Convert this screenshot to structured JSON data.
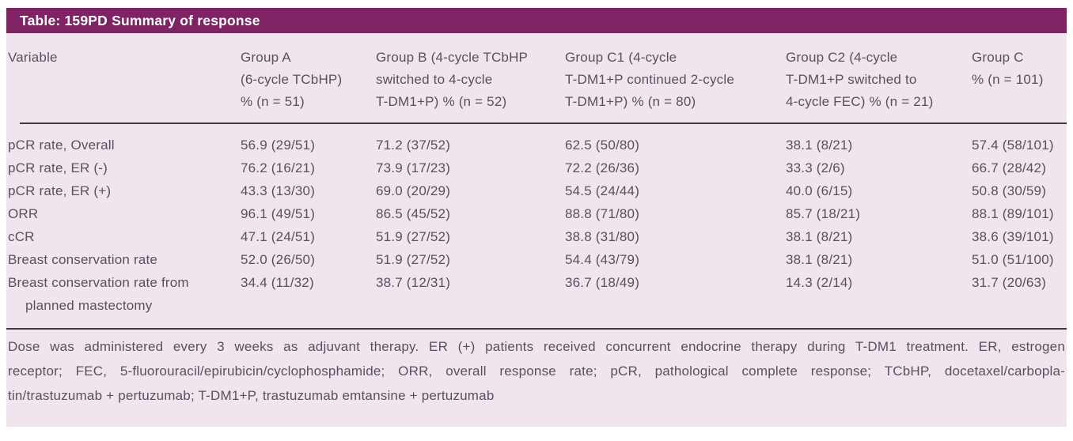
{
  "title": "Table: 159PD Summary of response",
  "colors": {
    "header_bar": "#7F2364",
    "table_bg": "#F0E4EE",
    "text": "#56525C",
    "title_text": "#FFFFFF",
    "rule": "#3B3A42"
  },
  "header": {
    "variable": "Variable",
    "group_a": [
      "Group A",
      "(6-cycle TCbHP)",
      "% (n = 51)"
    ],
    "group_b": [
      "Group B (4-cycle TCbHP",
      "switched to 4-cycle",
      "T-DM1+P) % (n = 52)"
    ],
    "group_c1": [
      "Group C1 (4-cycle",
      "T-DM1+P continued 2-cycle",
      "T-DM1+P) % (n = 80)"
    ],
    "group_c2": [
      "Group C2 (4-cycle",
      "T-DM1+P switched to",
      "4-cycle FEC) % (n = 21)"
    ],
    "group_c": [
      "Group C",
      "% (n = 101)"
    ]
  },
  "rows": [
    {
      "variable": "pCR rate, Overall",
      "group_a": "56.9 (29/51)",
      "group_b": "71.2 (37/52)",
      "group_c1": "62.5 (50/80)",
      "group_c2": "38.1 (8/21)",
      "group_c": "57.4 (58/101)"
    },
    {
      "variable": "pCR rate, ER (-)",
      "group_a": "76.2 (16/21)",
      "group_b": "73.9 (17/23)",
      "group_c1": "72.2 (26/36)",
      "group_c2": "33.3 (2/6)",
      "group_c": "66.7 (28/42)"
    },
    {
      "variable": "pCR rate, ER (+)",
      "group_a": "43.3 (13/30)",
      "group_b": "69.0 (20/29)",
      "group_c1": "54.5 (24/44)",
      "group_c2": "40.0 (6/15)",
      "group_c": "50.8 (30/59)"
    },
    {
      "variable": "ORR",
      "group_a": "96.1 (49/51)",
      "group_b": "86.5 (45/52)",
      "group_c1": "88.8 (71/80)",
      "group_c2": "85.7 (18/21)",
      "group_c": "88.1 (89/101)"
    },
    {
      "variable": "cCR",
      "group_a": "47.1 (24/51)",
      "group_b": "51.9 (27/52)",
      "group_c1": "38.8 (31/80)",
      "group_c2": "38.1 (8/21)",
      "group_c": "38.6 (39/101)"
    },
    {
      "variable": "Breast conservation rate",
      "group_a": "52.0 (26/50)",
      "group_b": "51.9 (27/52)",
      "group_c1": "54.4 (43/79)",
      "group_c2": "38.1 (8/21)",
      "group_c": "51.0 (51/100)"
    },
    {
      "variable": "Breast conservation rate from",
      "variable_line2": "planned mastectomy",
      "group_a": "34.4 (11/32)",
      "group_b": "38.7 (12/31)",
      "group_c1": "36.7 (18/49)",
      "group_c2": "14.3 (2/14)",
      "group_c": "31.7 (20/63)"
    }
  ],
  "footnote_lines": [
    "Dose was administered every 3 weeks as adjuvant therapy. ER (+) patients received concurrent endocrine therapy during T-DM1 treatment. ER, estrogen",
    "receptor; FEC, 5-fluorouracil/epirubicin/cyclophosphamide; ORR, overall response rate; pCR, pathological complete response; TCbHP, docetaxel/carbopla-",
    "tin/trastuzumab + pertuzumab; T-DM1+P, trastuzumab emtansine + pertuzumab"
  ]
}
